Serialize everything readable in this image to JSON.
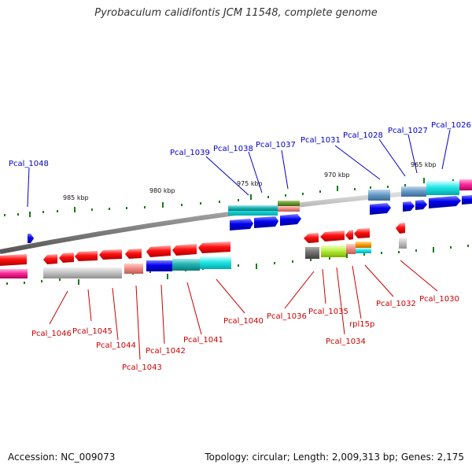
{
  "title": "Pyrobaculum calidifontis JCM 11548, complete genome",
  "footer": {
    "accession": "Accession: NC_009073",
    "topology": "Topology: circular; Length: 2,009,313 bp; Genes: 2,175"
  },
  "ruler": [
    "985 kbp",
    "980 kbp",
    "975 kbp",
    "970 kbp",
    "965 kbp"
  ],
  "labels_top": [
    "Pcal_1048",
    "Pcal_1039",
    "Pcal_1038",
    "Pcal_1037",
    "Pcal_1031",
    "Pcal_1028",
    "Pcal_1027",
    "Pcal_1026"
  ],
  "labels_bottom": [
    "Pcal_1046",
    "Pcal_1045",
    "Pcal_1044",
    "Pcal_1043",
    "Pcal_1042",
    "Pcal_1041",
    "Pcal_1040",
    "Pcal_1036",
    "Pcal_1035",
    "Pcal_1034",
    "rpl15p",
    "Pcal_1032",
    "Pcal_1030"
  ],
  "colors": {
    "top_label": "#0000cc",
    "bottom_label": "#cc0000",
    "tick": "#1a7a1a"
  }
}
